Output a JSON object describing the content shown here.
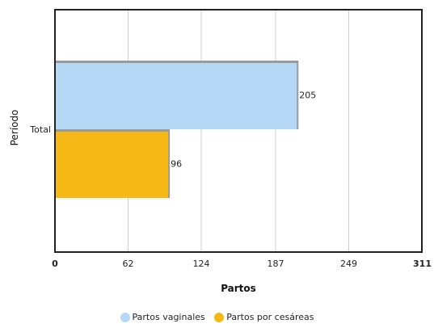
{
  "chart_data": {
    "type": "bar",
    "orientation": "horizontal",
    "title": "",
    "xlabel": "Partos",
    "ylabel": "Período",
    "categories": [
      "Total"
    ],
    "series": [
      {
        "name": "Partos vaginales",
        "values": [
          205
        ],
        "color": "#b5d8f7"
      },
      {
        "name": "Partos por cesáreas",
        "values": [
          96
        ],
        "color": "#f5b814"
      }
    ],
    "xlim": [
      0,
      311
    ],
    "x_ticks": [
      "0",
      "62",
      "124",
      "187",
      "249",
      "311"
    ],
    "x_tick_values": [
      0,
      62,
      124,
      187,
      249,
      311
    ],
    "grid": true,
    "legend_position": "bottom"
  }
}
